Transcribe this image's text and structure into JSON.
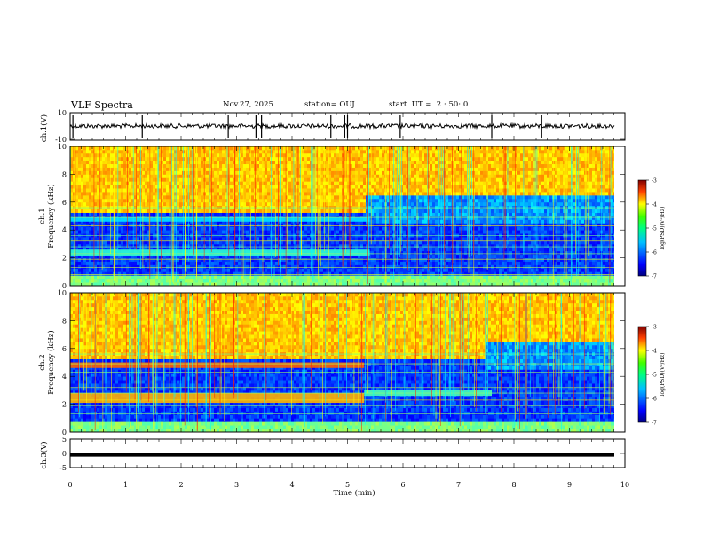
{
  "header": {
    "title": "VLF Spectra",
    "date": "Nov.27, 2025",
    "station": "station= OUJ",
    "start": "start  UT =  2 : 50: 0"
  },
  "chart_data": [
    {
      "type": "line",
      "name": "ch1-waveform",
      "ylabel": "ch.1(V)",
      "ylim": [
        -10,
        10
      ],
      "yticks": [
        "10",
        "-10"
      ],
      "xlim": [
        0,
        10
      ]
    },
    {
      "type": "heatmap",
      "name": "ch1-spectrogram",
      "ylabel": "ch.1",
      "ylabel2": "Frequency  (kHz)",
      "ylim": [
        0,
        10
      ],
      "yticks": [
        "0",
        "2",
        "4",
        "6",
        "8",
        "10"
      ],
      "xlim": [
        0,
        10
      ],
      "colorbar": {
        "label": "log(PSD)(V²/Hz)",
        "range": [
          -7,
          -3
        ],
        "ticks": [
          "-3",
          "-4",
          "-5",
          "-6",
          "-7"
        ]
      }
    },
    {
      "type": "heatmap",
      "name": "ch2-spectrogram",
      "ylabel": "ch.2",
      "ylabel2": "Frequency  (kHz)",
      "ylim": [
        0,
        10
      ],
      "yticks": [
        "0",
        "2",
        "4",
        "6",
        "8",
        "10"
      ],
      "xlim": [
        0,
        10
      ],
      "colorbar": {
        "label": "log(PSD)(V²/Hz)",
        "range": [
          -7,
          -3
        ],
        "ticks": [
          "-3",
          "-4",
          "-5",
          "-6",
          "-7"
        ]
      }
    },
    {
      "type": "line",
      "name": "ch3-waveform",
      "ylabel": "ch.3(V)",
      "ylim": [
        -5,
        5
      ],
      "yticks": [
        "5",
        "0",
        "-5"
      ],
      "xlim": [
        0,
        10
      ],
      "values_level": -0.5
    }
  ],
  "xaxis": {
    "label": "Time  (min)",
    "ticks": [
      "0",
      "1",
      "2",
      "3",
      "4",
      "5",
      "6",
      "7",
      "8",
      "9",
      "10"
    ]
  },
  "colors": {
    "axis": "#000000",
    "jet": [
      "#000080",
      "#0000ff",
      "#0080ff",
      "#00ffff",
      "#80ff80",
      "#00ff40",
      "#ffff00",
      "#ff8000",
      "#ff0000",
      "#800000"
    ]
  }
}
